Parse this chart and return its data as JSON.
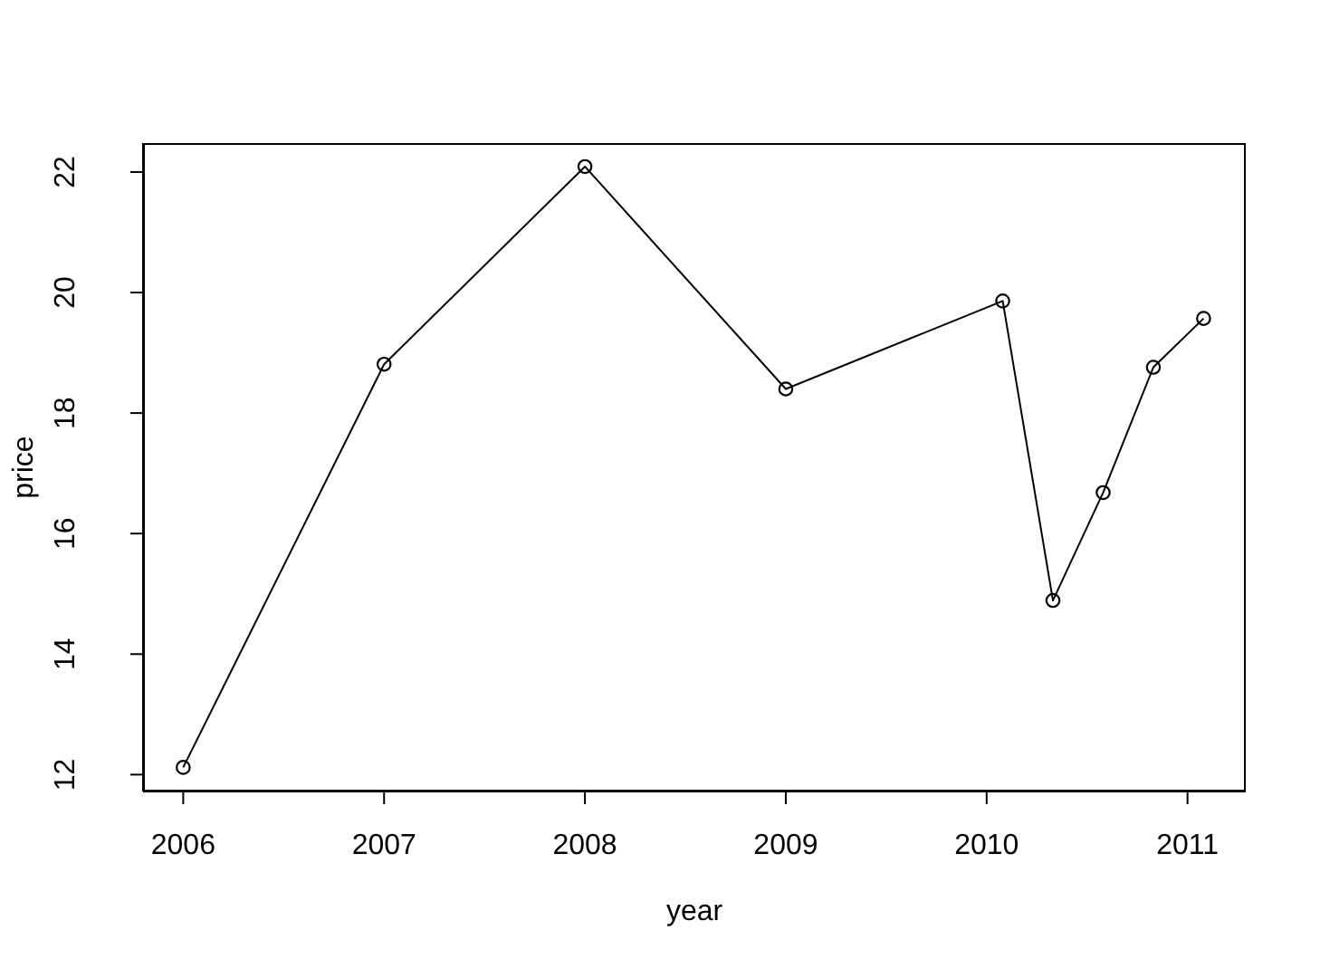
{
  "chart_data": {
    "type": "line",
    "xlabel": "year",
    "ylabel": "price",
    "x": [
      2006,
      2007,
      2008,
      2009,
      2010.08,
      2010.33,
      2010.58,
      2010.83,
      2011.08
    ],
    "values": [
      12.12,
      18.81,
      22.09,
      18.4,
      19.86,
      14.89,
      16.68,
      18.76,
      19.57
    ],
    "color": "#000000",
    "marker": "circle",
    "line_style": "solid",
    "xlim": [
      2005.8,
      2011.29
    ],
    "xticks": [
      2006,
      2007,
      2008,
      2009,
      2010,
      2011
    ],
    "ylim": [
      11.72,
      22.48
    ],
    "yticks": [
      12,
      14,
      16,
      18,
      20,
      22
    ]
  }
}
